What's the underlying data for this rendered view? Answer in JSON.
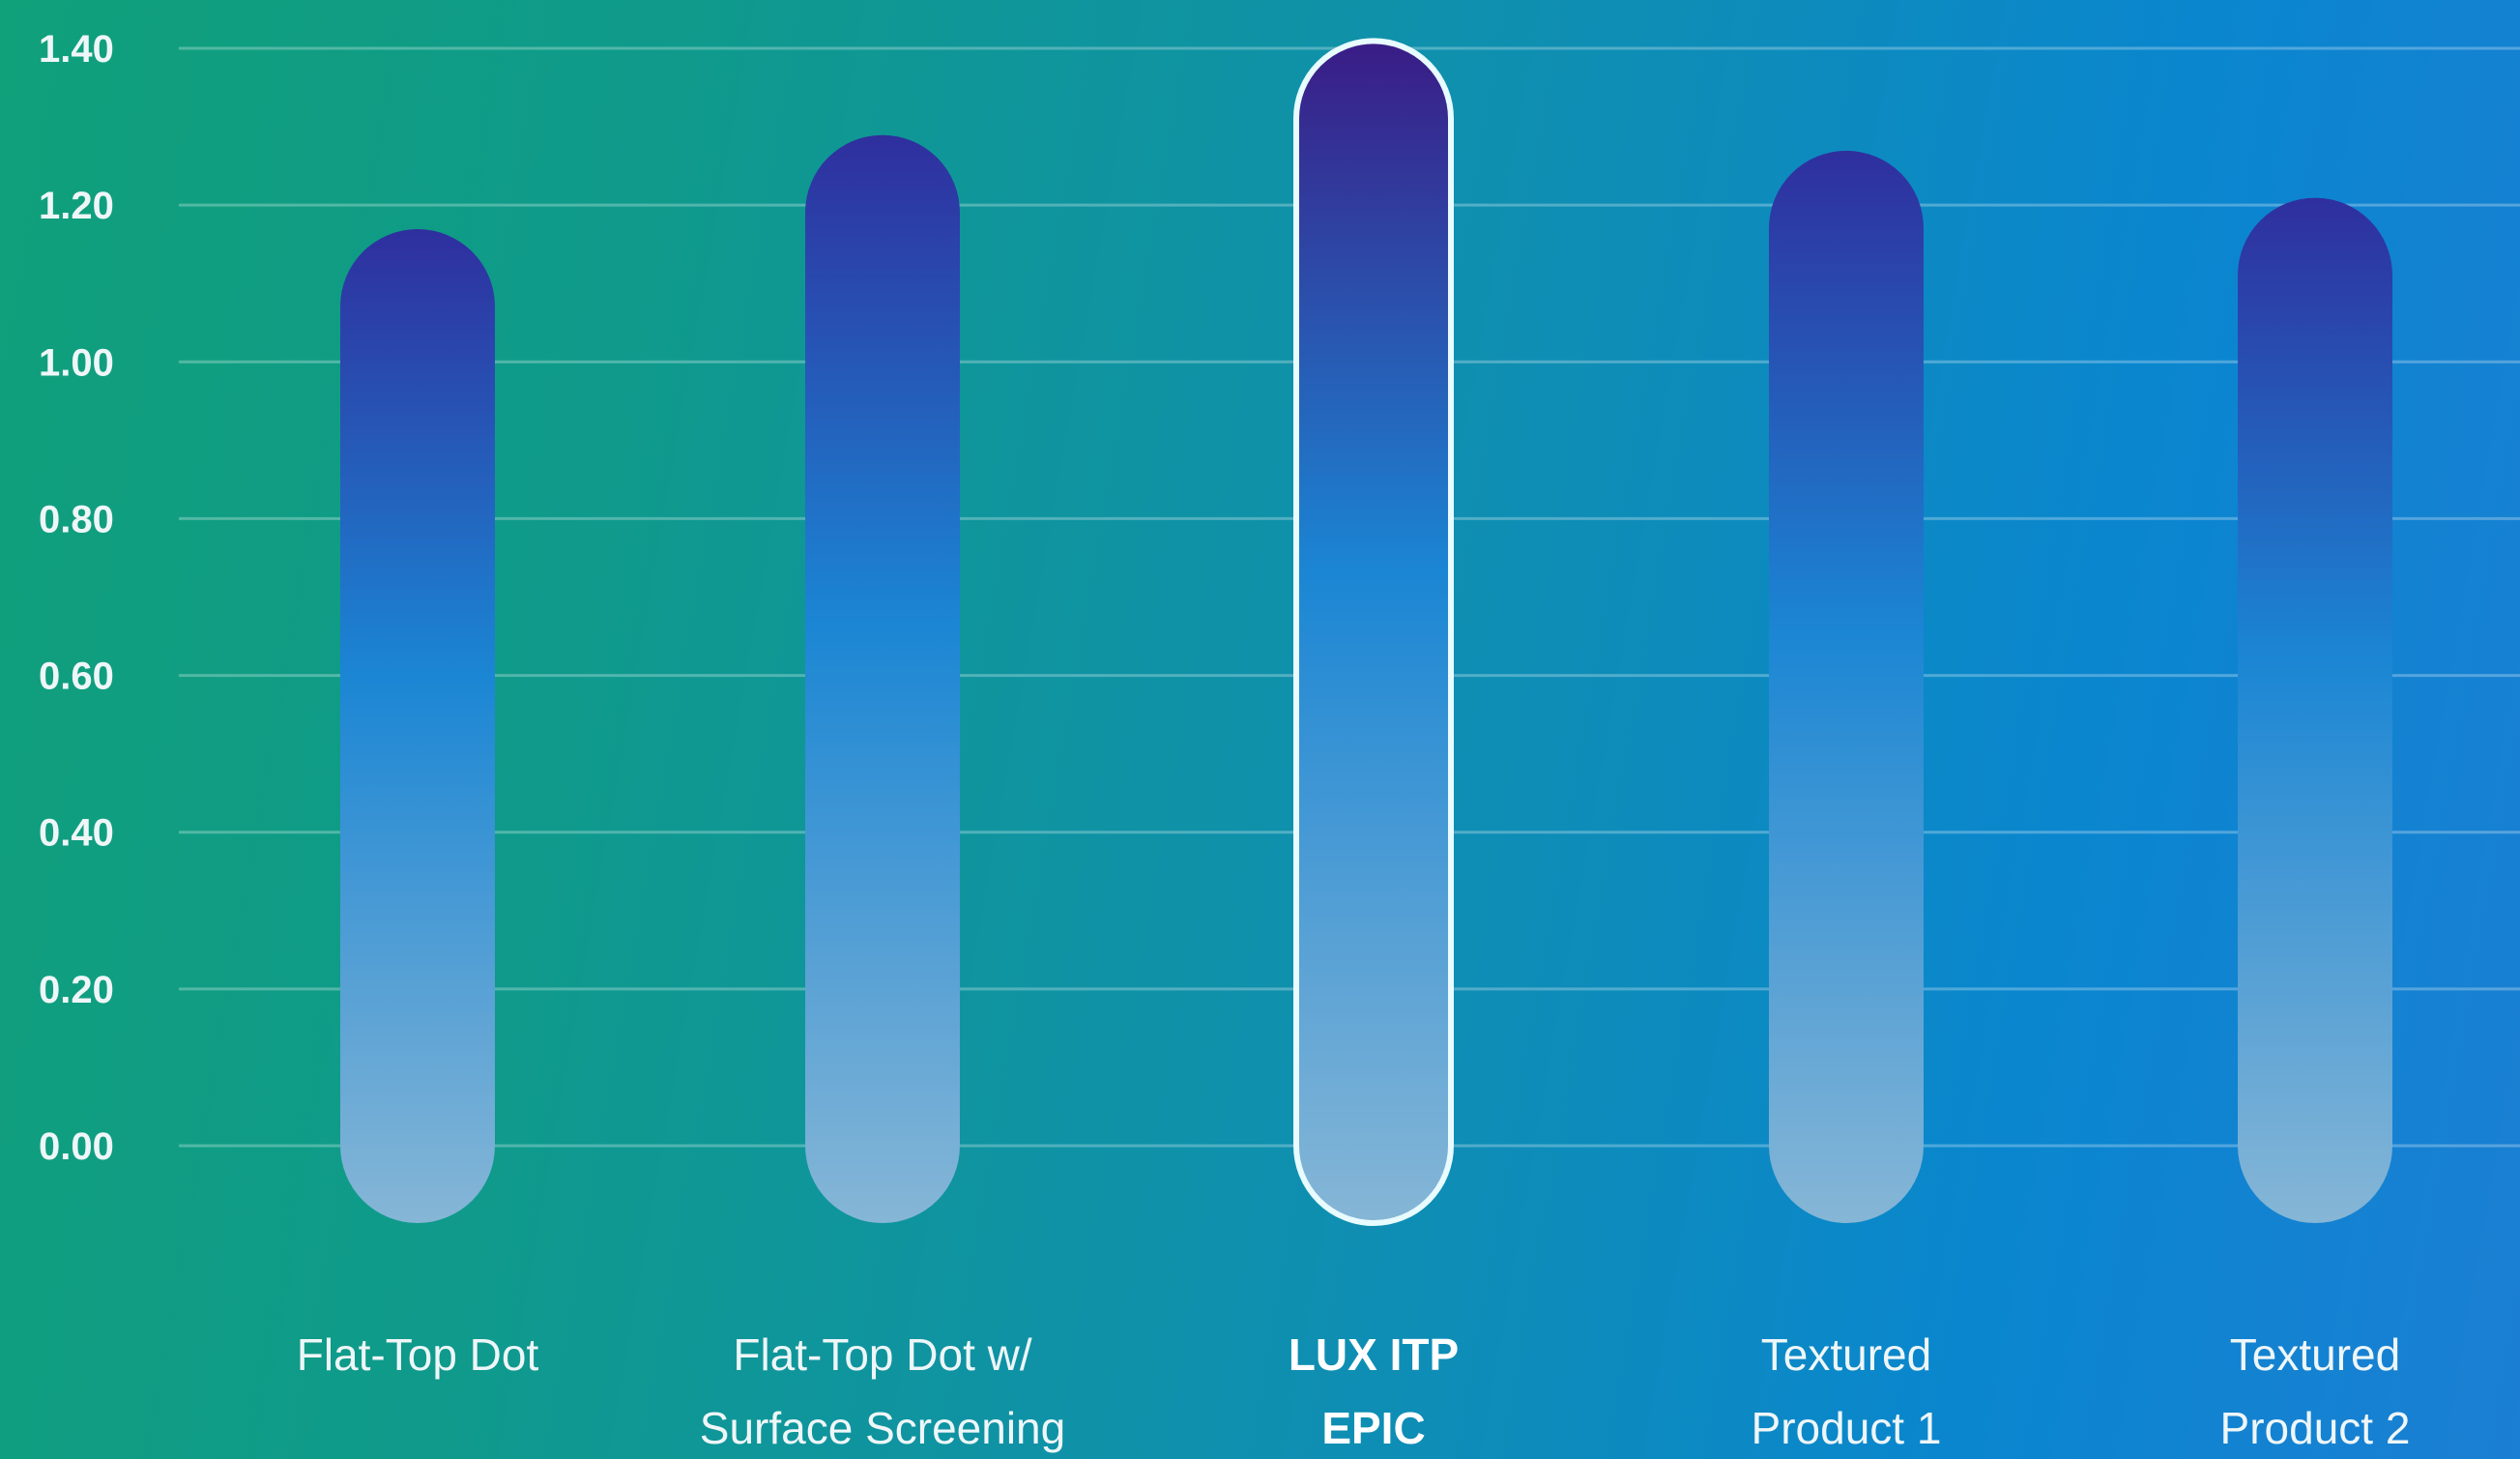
{
  "chart_data": {
    "type": "bar",
    "categories": [
      [
        "Flat-Top Dot"
      ],
      [
        "Flat-Top Dot w/",
        "Surface Screening"
      ],
      [
        "LUX ITP",
        "EPIC"
      ],
      [
        "Textured",
        "Product 1"
      ],
      [
        "Textured",
        "Product 2"
      ]
    ],
    "values": [
      1.12,
      1.24,
      1.36,
      1.22,
      1.16
    ],
    "highlight_index": 2,
    "ylim": [
      0,
      1.4
    ],
    "yticks": [
      "1.40",
      "1.20",
      "1.00",
      "0.80",
      "0.60",
      "0.40",
      "0.20",
      "0.00"
    ],
    "grid": true,
    "title": "",
    "xlabel": "",
    "ylabel": "",
    "colors": {
      "bar_top": "#2f2f9e",
      "bar_mid": "#1b86d4",
      "bar_bottom": "#86b6d6",
      "highlight_top": "#3a1c86",
      "highlight_outline": "#e8fbff"
    }
  }
}
